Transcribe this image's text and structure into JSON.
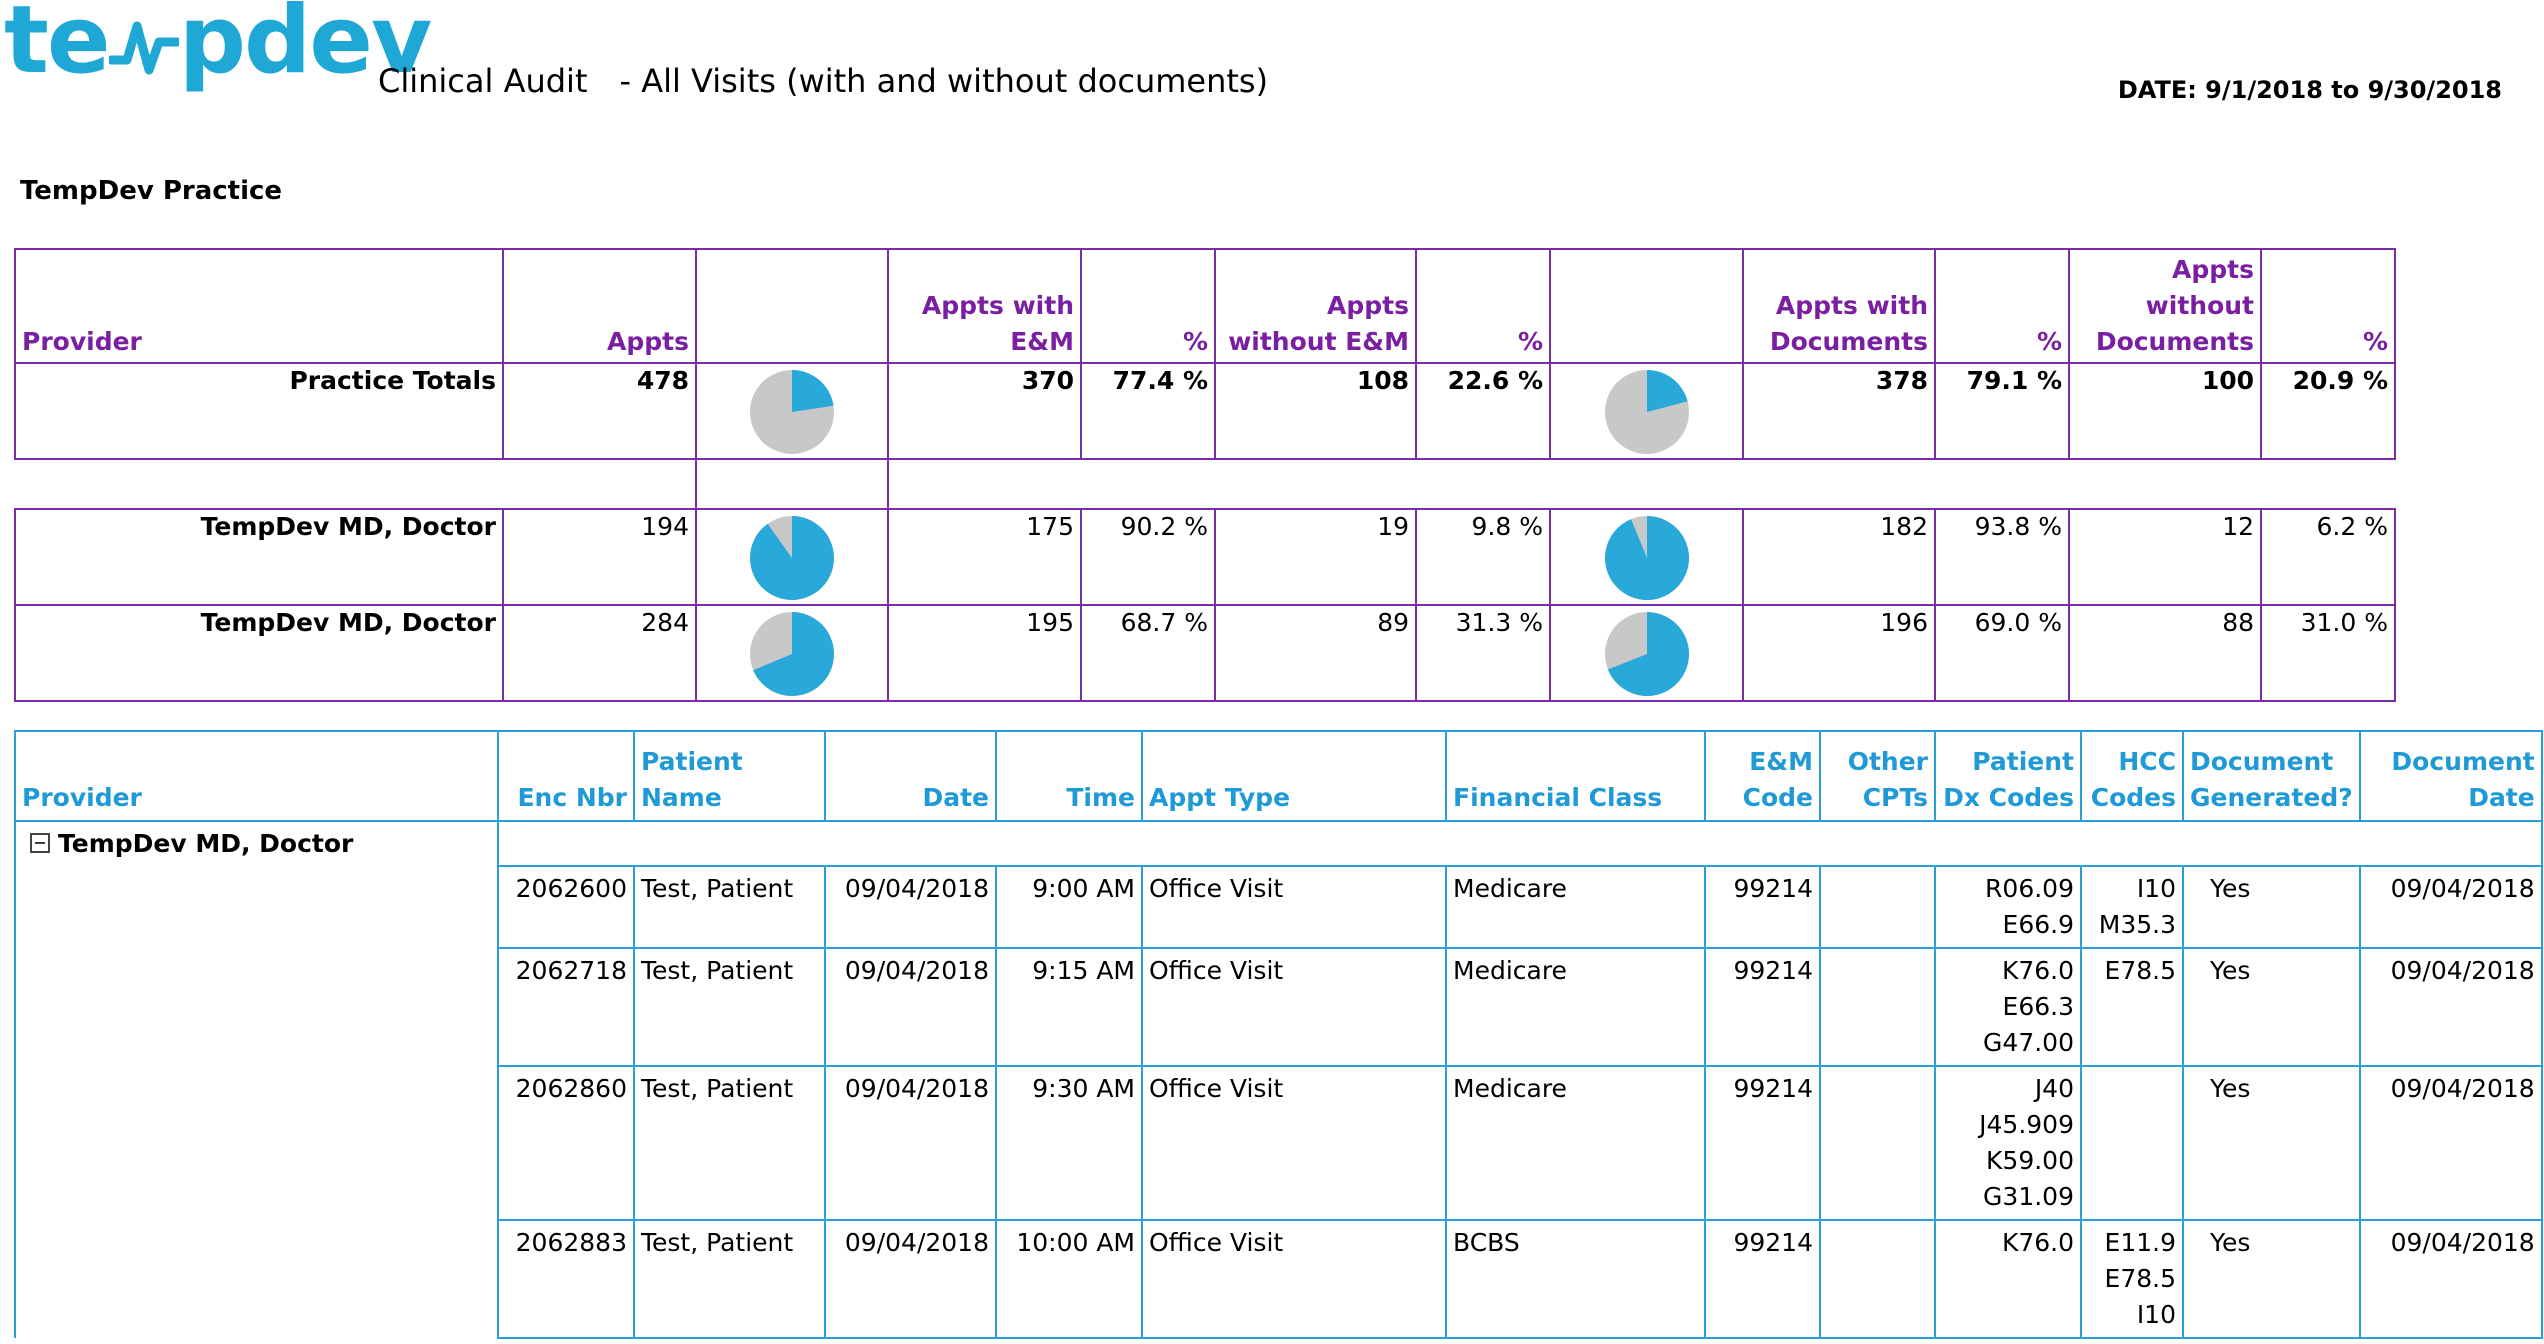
{
  "header": {
    "logo_text_left": "te",
    "logo_text_right": "pdev",
    "title": "Clinical Audit",
    "subtitle": "- All Visits (with and without documents)",
    "date_range": "DATE: 9/1/2018 to 9/30/2018",
    "practice_name": "TempDev Practice"
  },
  "colors": {
    "brand": "#1fa8d6",
    "summary_border": "#7b2da3",
    "detail_border": "#2a9fd6",
    "pie_fill": "#29a8da",
    "pie_rest": "#c8c8c8"
  },
  "summary": {
    "headers": {
      "provider": "Provider",
      "appts": "Appts",
      "appts_with_em": "Appts with E&M",
      "pct1": "%",
      "appts_without_em": "Appts without E&M",
      "pct2": "%",
      "appts_with_docs": "Appts with Documents",
      "pct3": "%",
      "appts_without_docs": "Appts without Documents",
      "pct4": "%"
    },
    "totals": {
      "provider": "Practice Totals",
      "appts": "478",
      "with_em": "370",
      "with_em_pct": "77.4 %",
      "without_em": "108",
      "without_em_pct": "22.6 %",
      "with_docs": "378",
      "with_docs_pct": "79.1 %",
      "without_docs": "100",
      "without_docs_pct": "20.9 %",
      "pie_em_fraction": 0.226,
      "pie_docs_fraction": 0.209
    },
    "rows": [
      {
        "provider": "TempDev MD, Doctor",
        "appts": "194",
        "with_em": "175",
        "with_em_pct": "90.2 %",
        "without_em": "19",
        "without_em_pct": "9.8 %",
        "with_docs": "182",
        "with_docs_pct": "93.8 %",
        "without_docs": "12",
        "without_docs_pct": "6.2 %",
        "pie_em_fraction": 0.902,
        "pie_docs_fraction": 0.938
      },
      {
        "provider": "TempDev MD, Doctor",
        "appts": "284",
        "with_em": "195",
        "with_em_pct": "68.7 %",
        "without_em": "89",
        "without_em_pct": "31.3 %",
        "with_docs": "196",
        "with_docs_pct": "69.0 %",
        "without_docs": "88",
        "without_docs_pct": "31.0 %",
        "pie_em_fraction": 0.687,
        "pie_docs_fraction": 0.69
      }
    ]
  },
  "detail": {
    "headers": {
      "provider": "Provider",
      "enc_nbr": "Enc Nbr",
      "patient_name": "Patient Name",
      "date": "Date",
      "time": "Time",
      "appt_type": "Appt Type",
      "financial_class": "Financial Class",
      "em_code": "E&M Code",
      "other_cpts": "Other CPTs",
      "patient_dx": "Patient Dx Codes",
      "hcc_codes": "HCC Codes",
      "doc_generated": "Document Generated?",
      "doc_date": "Document Date"
    },
    "group_label": "TempDev MD, Doctor",
    "rows": [
      {
        "enc_nbr": "2062600",
        "patient_name": "Test, Patient",
        "date": "09/04/2018",
        "time": "9:00 AM",
        "appt_type": "Office Visit",
        "financial_class": "Medicare",
        "em_code": "99214",
        "other_cpts": "",
        "dx_codes": [
          "R06.09",
          "E66.9"
        ],
        "hcc_codes": [
          "I10",
          "M35.3"
        ],
        "doc_generated": "Yes",
        "doc_date": "09/04/2018"
      },
      {
        "enc_nbr": "2062718",
        "patient_name": "Test, Patient",
        "date": "09/04/2018",
        "time": "9:15 AM",
        "appt_type": "Office Visit",
        "financial_class": "Medicare",
        "em_code": "99214",
        "other_cpts": "",
        "dx_codes": [
          "K76.0",
          "E66.3",
          "G47.00"
        ],
        "hcc_codes": [
          "E78.5"
        ],
        "doc_generated": "Yes",
        "doc_date": "09/04/2018"
      },
      {
        "enc_nbr": "2062860",
        "patient_name": "Test, Patient",
        "date": "09/04/2018",
        "time": "9:30 AM",
        "appt_type": "Office Visit",
        "financial_class": "Medicare",
        "em_code": "99214",
        "other_cpts": "",
        "dx_codes": [
          "J40",
          "J45.909",
          "K59.00",
          "G31.09"
        ],
        "hcc_codes": [],
        "doc_generated": "Yes",
        "doc_date": "09/04/2018"
      },
      {
        "enc_nbr": "2062883",
        "patient_name": "Test, Patient",
        "date": "09/04/2018",
        "time": "10:00 AM",
        "appt_type": "Office Visit",
        "financial_class": "BCBS",
        "em_code": "99214",
        "other_cpts": "",
        "dx_codes": [
          "K76.0"
        ],
        "hcc_codes": [
          "E11.9",
          "E78.5",
          "I10"
        ],
        "doc_generated": "Yes",
        "doc_date": "09/04/2018"
      }
    ]
  }
}
